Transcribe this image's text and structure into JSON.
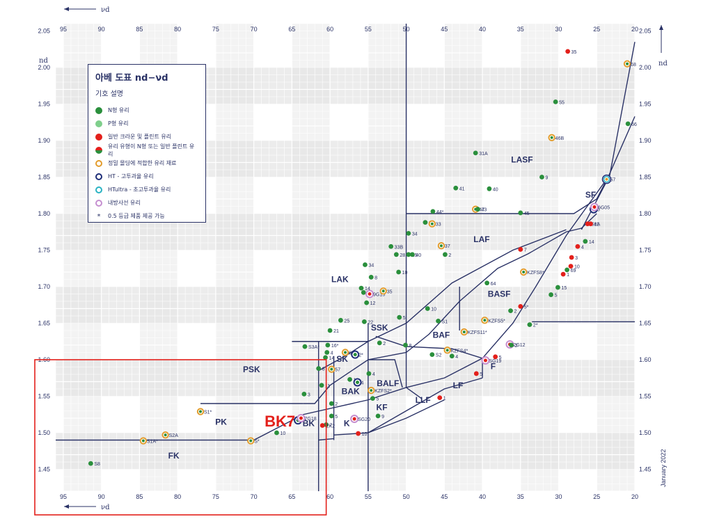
{
  "colors": {
    "navy": "#2a3266",
    "n_glass": "#2a8f3c",
    "p_glass": "#7fcf8c",
    "classic": "#e3201b",
    "precision": "#e39d2d",
    "ht": "#1e2e78",
    "htultra": "#29b3c3",
    "rad": "#c58fd0",
    "highlight": "#e3201b"
  },
  "legend": {
    "title": "아베 도표 nd−νd",
    "subtitle": "기호 설명",
    "items": [
      {
        "label": "N형 유리",
        "icon": "green-dot"
      },
      {
        "label": "P형 유리",
        "icon": "light-green-dot"
      },
      {
        "label": "일반 크라운 및 플린트 유리",
        "icon": "red-dot"
      },
      {
        "label": "유리 유형이 N형 또는 일반 플린트 유리",
        "icon": "half-red-green-dot"
      },
      {
        "label": "정밀 몰딩에 적합한 유리 재료",
        "icon": "orange-ring"
      },
      {
        "label": "HT - 고투과율 유리",
        "icon": "navy-ring"
      },
      {
        "label": "HTultra - 초고투과율 유리",
        "icon": "cyan-ring"
      },
      {
        "label": "내방사선 유리",
        "icon": "purple-ring"
      },
      {
        "label": "0.5 등급 제품 제공 가능",
        "icon": "asterisk"
      }
    ]
  },
  "footer": {
    "date": "January 2022"
  },
  "chart_data": {
    "type": "scatter",
    "xlabel": "νd",
    "ylabel": "nd",
    "xlim": [
      96,
      20
    ],
    "ylim": [
      1.42,
      2.06
    ],
    "x_ticks": [
      95,
      90,
      85,
      80,
      75,
      70,
      65,
      60,
      55,
      50,
      45,
      40,
      35,
      30,
      25,
      20
    ],
    "y_ticks": [
      1.45,
      1.5,
      1.55,
      1.6,
      1.65,
      1.7,
      1.75,
      1.8,
      1.85,
      1.9,
      1.95,
      2.0,
      2.05
    ],
    "x_tick_labels": [
      "95",
      "90",
      "85",
      "80",
      "75",
      "70",
      "65",
      "60",
      "55",
      "50",
      "45",
      "40",
      "35",
      "30",
      "25",
      "20"
    ],
    "y_tick_labels": [
      "1.45",
      "1.50",
      "1.55",
      "1.60",
      "1.65",
      "1.70",
      "1.75",
      "1.80",
      "1.85",
      "1.90",
      "1.95",
      "2.00",
      "2.05"
    ],
    "grid": true,
    "regions": [
      "FK",
      "PK",
      "PSK",
      "BK",
      "K",
      "BAK",
      "SK",
      "SSK",
      "LAK",
      "BALF",
      "KF",
      "LLF",
      "LF",
      "F",
      "BAF",
      "BASF",
      "LAF",
      "LASF",
      "SF"
    ],
    "points": [
      {
        "label": "S8",
        "x": 91.4,
        "y": 1.458,
        "kind": "n"
      },
      {
        "label": "S1A*",
        "x": 84.5,
        "y": 1.489,
        "kind": "precision"
      },
      {
        "label": "S2A",
        "x": 81.6,
        "y": 1.497,
        "kind": "precision"
      },
      {
        "label": "S1*",
        "x": 77.0,
        "y": 1.529,
        "kind": "precision"
      },
      {
        "label": "S*",
        "x": 70.4,
        "y": 1.489,
        "kind": "precision"
      },
      {
        "label": "10",
        "x": 67.0,
        "y": 1.5,
        "kind": "n"
      },
      {
        "label": "7*",
        "x": 64.2,
        "y": 1.517,
        "kind": "ht"
      },
      {
        "label": "7G18",
        "x": 63.8,
        "y": 1.52,
        "kind": "rad"
      },
      {
        "label": "3",
        "x": 63.4,
        "y": 1.553,
        "kind": "n"
      },
      {
        "label": "S3A*",
        "x": 63.3,
        "y": 1.618,
        "kind": "n"
      },
      {
        "label": "8",
        "x": 61.5,
        "y": 1.588,
        "kind": "n"
      },
      {
        "label": "11",
        "x": 61.1,
        "y": 1.565,
        "kind": "n"
      },
      {
        "label": "14",
        "x": 60.6,
        "y": 1.603,
        "kind": "n"
      },
      {
        "label": "16*",
        "x": 60.3,
        "y": 1.62,
        "kind": "n"
      },
      {
        "label": "21",
        "x": 60.0,
        "y": 1.64,
        "kind": "n"
      },
      {
        "label": "4",
        "x": 60.4,
        "y": 1.61,
        "kind": "n"
      },
      {
        "label": "57",
        "x": 59.8,
        "y": 1.587,
        "kind": "precision"
      },
      {
        "label": "2",
        "x": 59.8,
        "y": 1.54,
        "kind": "n"
      },
      {
        "label": "5",
        "x": 59.8,
        "y": 1.523,
        "kind": "n"
      },
      {
        "label": "7",
        "x": 60.5,
        "y": 1.511,
        "kind": "n"
      },
      {
        "label": "ZK2",
        "x": 61.0,
        "y": 1.51,
        "kind": "classic"
      },
      {
        "label": "25",
        "x": 58.6,
        "y": 1.654,
        "kind": "n"
      },
      {
        "label": "60",
        "x": 58.0,
        "y": 1.61,
        "kind": "precision"
      },
      {
        "label": "1",
        "x": 57.4,
        "y": 1.573,
        "kind": "n"
      },
      {
        "label": "4",
        "x": 56.4,
        "y": 1.569,
        "kind": "ht"
      },
      {
        "label": "2*",
        "x": 56.7,
        "y": 1.607,
        "kind": "ht"
      },
      {
        "label": "SG20",
        "x": 56.8,
        "y": 1.519,
        "kind": "rad"
      },
      {
        "label": "10",
        "x": 56.3,
        "y": 1.499,
        "kind": "classic"
      },
      {
        "label": "22",
        "x": 55.5,
        "y": 1.652,
        "kind": "n"
      },
      {
        "label": "4",
        "x": 54.9,
        "y": 1.581,
        "kind": "n"
      },
      {
        "label": "KZFS2*",
        "x": 54.6,
        "y": 1.558,
        "kind": "precision"
      },
      {
        "label": "5",
        "x": 54.4,
        "y": 1.547,
        "kind": "n"
      },
      {
        "label": "9",
        "x": 53.7,
        "y": 1.523,
        "kind": "n"
      },
      {
        "label": "2",
        "x": 53.5,
        "y": 1.623,
        "kind": "n"
      },
      {
        "label": "12",
        "x": 55.2,
        "y": 1.678,
        "kind": "n"
      },
      {
        "label": "9*",
        "x": 55.6,
        "y": 1.692,
        "kind": "n"
      },
      {
        "label": "9G15",
        "x": 54.8,
        "y": 1.69,
        "kind": "rad"
      },
      {
        "label": "14",
        "x": 55.9,
        "y": 1.698,
        "kind": "n"
      },
      {
        "label": "35",
        "x": 53.0,
        "y": 1.694,
        "kind": "precision"
      },
      {
        "label": "8",
        "x": 54.6,
        "y": 1.713,
        "kind": "n"
      },
      {
        "label": "34",
        "x": 55.4,
        "y": 1.73,
        "kind": "n"
      },
      {
        "label": "33B",
        "x": 52.0,
        "y": 1.755,
        "kind": "n"
      },
      {
        "label": "28",
        "x": 51.3,
        "y": 1.744,
        "kind": "n"
      },
      {
        "label": "35",
        "x": 49.7,
        "y": 1.744,
        "kind": "n"
      },
      {
        "label": "10",
        "x": 51.0,
        "y": 1.72,
        "kind": "n"
      },
      {
        "label": "34",
        "x": 49.7,
        "y": 1.773,
        "kind": "n"
      },
      {
        "label": "40",
        "x": 49.2,
        "y": 1.744,
        "kind": "n"
      },
      {
        "label": "5",
        "x": 50.9,
        "y": 1.658,
        "kind": "n"
      },
      {
        "label": "8",
        "x": 50.1,
        "y": 1.62,
        "kind": "n"
      },
      {
        "label": "S2",
        "x": 46.6,
        "y": 1.607,
        "kind": "n"
      },
      {
        "label": "10",
        "x": 47.2,
        "y": 1.67,
        "kind": "n"
      },
      {
        "label": "S1",
        "x": 45.8,
        "y": 1.653,
        "kind": "n"
      },
      {
        "label": "KZFS4*",
        "x": 44.6,
        "y": 1.613,
        "kind": "precision"
      },
      {
        "label": "4",
        "x": 44.0,
        "y": 1.605,
        "kind": "n"
      },
      {
        "label": "KZFS11*",
        "x": 42.4,
        "y": 1.638,
        "kind": "precision"
      },
      {
        "label": "KZFS5*",
        "x": 39.7,
        "y": 1.654,
        "kind": "precision"
      },
      {
        "label": "1",
        "x": 45.6,
        "y": 1.548,
        "kind": "classic"
      },
      {
        "label": "5",
        "x": 40.8,
        "y": 1.581,
        "kind": "classic"
      },
      {
        "label": "SG19",
        "x": 39.6,
        "y": 1.599,
        "kind": "rad"
      },
      {
        "label": "5",
        "x": 38.3,
        "y": 1.604,
        "kind": "classic"
      },
      {
        "label": "2G12",
        "x": 36.4,
        "y": 1.621,
        "kind": "rad"
      },
      {
        "label": "2",
        "x": 36.2,
        "y": 1.62,
        "kind": "n"
      },
      {
        "label": "2*",
        "x": 33.8,
        "y": 1.648,
        "kind": "n"
      },
      {
        "label": "5*",
        "x": 35.0,
        "y": 1.673,
        "kind": "classic"
      },
      {
        "label": "2",
        "x": 36.3,
        "y": 1.667,
        "kind": "n"
      },
      {
        "label": "64",
        "x": 39.4,
        "y": 1.705,
        "kind": "n"
      },
      {
        "label": "KZFS8*",
        "x": 34.6,
        "y": 1.72,
        "kind": "precision"
      },
      {
        "label": "7",
        "x": 35.0,
        "y": 1.751,
        "kind": "classic"
      },
      {
        "label": "2",
        "x": 44.9,
        "y": 1.744,
        "kind": "n"
      },
      {
        "label": "37",
        "x": 45.4,
        "y": 1.756,
        "kind": "precision"
      },
      {
        "label": "21",
        "x": 47.5,
        "y": 1.788,
        "kind": "n"
      },
      {
        "label": "33",
        "x": 46.6,
        "y": 1.786,
        "kind": "precision"
      },
      {
        "label": "44*",
        "x": 46.5,
        "y": 1.803,
        "kind": "n"
      },
      {
        "label": "47",
        "x": 40.9,
        "y": 1.806,
        "kind": "precision"
      },
      {
        "label": "43",
        "x": 40.6,
        "y": 1.806,
        "kind": "n"
      },
      {
        "label": "45",
        "x": 35.0,
        "y": 1.801,
        "kind": "n"
      },
      {
        "label": "41",
        "x": 43.5,
        "y": 1.835,
        "kind": "n"
      },
      {
        "label": "40",
        "x": 39.1,
        "y": 1.834,
        "kind": "n"
      },
      {
        "label": "31A",
        "x": 40.9,
        "y": 1.883,
        "kind": "n"
      },
      {
        "label": "9",
        "x": 32.2,
        "y": 1.85,
        "kind": "n"
      },
      {
        "label": "46B",
        "x": 30.9,
        "y": 1.904,
        "kind": "precision"
      },
      {
        "label": "55",
        "x": 30.4,
        "y": 1.953,
        "kind": "n"
      },
      {
        "label": "35",
        "x": 28.8,
        "y": 2.022,
        "kind": "classic"
      },
      {
        "label": "68",
        "x": 21.0,
        "y": 2.005,
        "kind": "precision"
      },
      {
        "label": "66",
        "x": 20.9,
        "y": 1.923,
        "kind": "n"
      },
      {
        "label": "57",
        "x": 23.7,
        "y": 1.847,
        "kind": "htultra"
      },
      {
        "label": "6",
        "x": 25.4,
        "y": 1.806,
        "kind": "ht"
      },
      {
        "label": "6G05",
        "x": 25.3,
        "y": 1.809,
        "kind": "rad"
      },
      {
        "label": "S6A",
        "x": 26.2,
        "y": 1.786,
        "kind": "classic"
      },
      {
        "label": "11",
        "x": 25.8,
        "y": 1.786,
        "kind": "classic"
      },
      {
        "label": "14",
        "x": 26.5,
        "y": 1.762,
        "kind": "n"
      },
      {
        "label": "4",
        "x": 27.5,
        "y": 1.755,
        "kind": "classic"
      },
      {
        "label": "3",
        "x": 28.3,
        "y": 1.74,
        "kind": "classic"
      },
      {
        "label": "10",
        "x": 28.4,
        "y": 1.728,
        "kind": "classic"
      },
      {
        "label": "69",
        "x": 28.9,
        "y": 1.723,
        "kind": "n"
      },
      {
        "label": "1",
        "x": 29.4,
        "y": 1.717,
        "kind": "classic"
      },
      {
        "label": "15",
        "x": 30.1,
        "y": 1.699,
        "kind": "n"
      },
      {
        "label": "5",
        "x": 31.0,
        "y": 1.689,
        "kind": "n"
      },
      {
        "label": "BK7",
        "x": 64.2,
        "y": 1.517,
        "kind": "highlight"
      }
    ],
    "x_top_axis_label": "νd",
    "y_right_axis_label": "nd"
  }
}
